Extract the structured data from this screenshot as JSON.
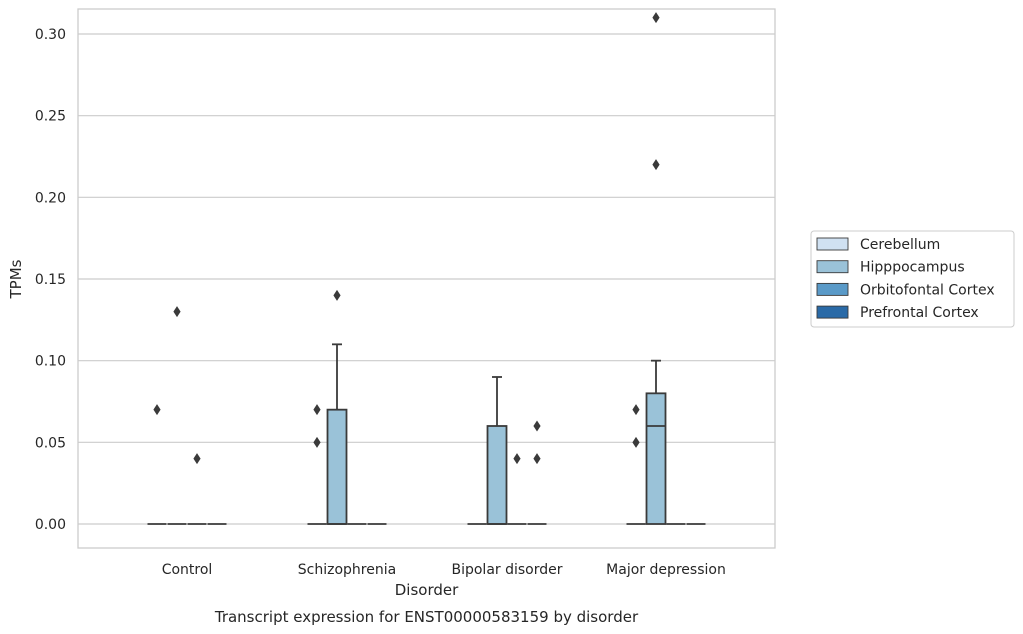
{
  "chart_data": {
    "type": "box",
    "xlabel": "Disorder",
    "ylabel": "TPMs",
    "caption": "Transcript expression for ENST00000583159 by disorder",
    "categories": [
      "Control",
      "Schizophrenia",
      "Bipolar disorder",
      "Major depression"
    ],
    "ylim": [
      -0.015,
      0.325
    ],
    "yticks": [
      0.0,
      0.05,
      0.1,
      0.15,
      0.2,
      0.25,
      0.3
    ],
    "ytick_labels": [
      "0.00",
      "0.05",
      "0.10",
      "0.15",
      "0.20",
      "0.25",
      "0.30"
    ],
    "grid": true,
    "legend_position": "right",
    "series": [
      {
        "name": "Cerebellum",
        "color": "#d0e1f2",
        "boxes": [
          {
            "category": "Control",
            "q1": 0.0,
            "median": 0.0,
            "q3": 0.0,
            "whisker_low": 0.0,
            "whisker_high": 0.0,
            "outliers": [
              0.07
            ]
          },
          {
            "category": "Schizophrenia",
            "q1": 0.0,
            "median": 0.0,
            "q3": 0.0,
            "whisker_low": 0.0,
            "whisker_high": 0.0,
            "outliers": [
              0.05,
              0.07
            ]
          },
          {
            "category": "Bipolar disorder",
            "q1": 0.0,
            "median": 0.0,
            "q3": 0.0,
            "whisker_low": 0.0,
            "whisker_high": 0.0,
            "outliers": []
          },
          {
            "category": "Major depression",
            "q1": 0.0,
            "median": 0.0,
            "q3": 0.0,
            "whisker_low": 0.0,
            "whisker_high": 0.0,
            "outliers": [
              0.05,
              0.07
            ]
          }
        ]
      },
      {
        "name": "Hipppocampus",
        "color": "#9ac2d8",
        "boxes": [
          {
            "category": "Control",
            "q1": 0.0,
            "median": 0.0,
            "q3": 0.0,
            "whisker_low": 0.0,
            "whisker_high": 0.0,
            "outliers": [
              0.13
            ]
          },
          {
            "category": "Schizophrenia",
            "q1": 0.0,
            "median": 0.0,
            "q3": 0.07,
            "whisker_low": 0.0,
            "whisker_high": 0.11,
            "outliers": [
              0.14
            ]
          },
          {
            "category": "Bipolar disorder",
            "q1": 0.0,
            "median": 0.0,
            "q3": 0.06,
            "whisker_low": 0.0,
            "whisker_high": 0.09,
            "outliers": []
          },
          {
            "category": "Major depression",
            "q1": 0.0,
            "median": 0.06,
            "q3": 0.08,
            "whisker_low": 0.0,
            "whisker_high": 0.1,
            "outliers": [
              0.22,
              0.31
            ]
          }
        ]
      },
      {
        "name": "Orbitofontal Cortex",
        "color": "#5a9ac8",
        "boxes": [
          {
            "category": "Control",
            "q1": 0.0,
            "median": 0.0,
            "q3": 0.0,
            "whisker_low": 0.0,
            "whisker_high": 0.0,
            "outliers": [
              0.04
            ]
          },
          {
            "category": "Schizophrenia",
            "q1": 0.0,
            "median": 0.0,
            "q3": 0.0,
            "whisker_low": 0.0,
            "whisker_high": 0.0,
            "outliers": []
          },
          {
            "category": "Bipolar disorder",
            "q1": 0.0,
            "median": 0.0,
            "q3": 0.0,
            "whisker_low": 0.0,
            "whisker_high": 0.0,
            "outliers": [
              0.04
            ]
          },
          {
            "category": "Major depression",
            "q1": 0.0,
            "median": 0.0,
            "q3": 0.0,
            "whisker_low": 0.0,
            "whisker_high": 0.0,
            "outliers": []
          }
        ]
      },
      {
        "name": "Prefrontal Cortex",
        "color": "#2a6aa7",
        "boxes": [
          {
            "category": "Control",
            "q1": 0.0,
            "median": 0.0,
            "q3": 0.0,
            "whisker_low": 0.0,
            "whisker_high": 0.0,
            "outliers": []
          },
          {
            "category": "Schizophrenia",
            "q1": 0.0,
            "median": 0.0,
            "q3": 0.0,
            "whisker_low": 0.0,
            "whisker_high": 0.0,
            "outliers": []
          },
          {
            "category": "Bipolar disorder",
            "q1": 0.0,
            "median": 0.0,
            "q3": 0.0,
            "whisker_low": 0.0,
            "whisker_high": 0.0,
            "outliers": [
              0.04,
              0.06
            ]
          },
          {
            "category": "Major depression",
            "q1": 0.0,
            "median": 0.0,
            "q3": 0.0,
            "whisker_low": 0.0,
            "whisker_high": 0.0,
            "outliers": []
          }
        ]
      }
    ],
    "line_color": "#3a3a3a",
    "grid_color": "#cccccc",
    "frame_color": "#cccccc"
  }
}
